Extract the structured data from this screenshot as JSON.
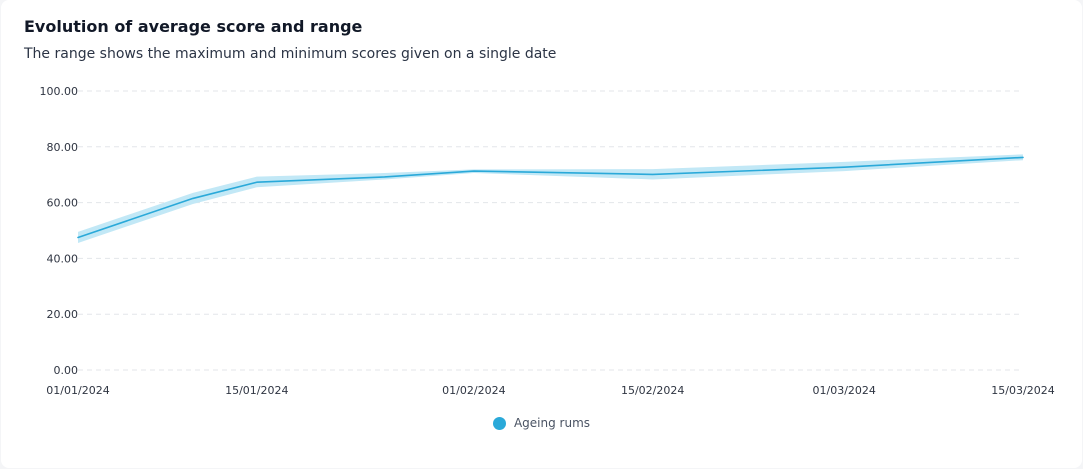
{
  "card": {
    "title": "Evolution of average score and range",
    "subtitle": "The range shows the maximum and minimum scores given on a single date"
  },
  "colors": {
    "line": "#2aa9d9",
    "band": "#c2e8f6",
    "grid": "#e3e6ea",
    "legend_swatch": "#2aa9d9"
  },
  "chart_data": {
    "type": "line",
    "title": "Evolution of average score and range",
    "subtitle": "The range shows the maximum and minimum scores given on a single date",
    "x": [
      "2024-01-01",
      "2024-01-15",
      "2024-02-01",
      "2024-02-15",
      "2024-03-01",
      "2024-03-15"
    ],
    "x_tick_labels": [
      "01/01/2024",
      "15/01/2024",
      "01/02/2024",
      "15/02/2024",
      "01/03/2024",
      "15/03/2024"
    ],
    "y_tick_labels": [
      "0.00",
      "20.00",
      "40.00",
      "60.00",
      "80.00",
      "100.00"
    ],
    "ylim": [
      0,
      100
    ],
    "grid": true,
    "legend_position": "bottom-center",
    "series": [
      {
        "name": "Ageing rums",
        "points": [
          {
            "x": "2024-01-01",
            "mean": 47.5,
            "min": 45.5,
            "max": 49.5
          },
          {
            "x": "2024-01-10",
            "mean": 61.5,
            "min": 59.5,
            "max": 63.5
          },
          {
            "x": "2024-01-15",
            "mean": 67.3,
            "min": 65.5,
            "max": 69.3
          },
          {
            "x": "2024-01-25",
            "mean": 69.2,
            "min": 68.3,
            "max": 70.6
          },
          {
            "x": "2024-02-01",
            "mean": 71.3,
            "min": 70.6,
            "max": 71.9
          },
          {
            "x": "2024-02-15",
            "mean": 70.1,
            "min": 68.3,
            "max": 72.0
          },
          {
            "x": "2024-03-01",
            "mean": 72.7,
            "min": 71.3,
            "max": 74.6
          },
          {
            "x": "2024-03-15",
            "mean": 76.2,
            "min": 75.2,
            "max": 77.3
          }
        ]
      }
    ]
  }
}
